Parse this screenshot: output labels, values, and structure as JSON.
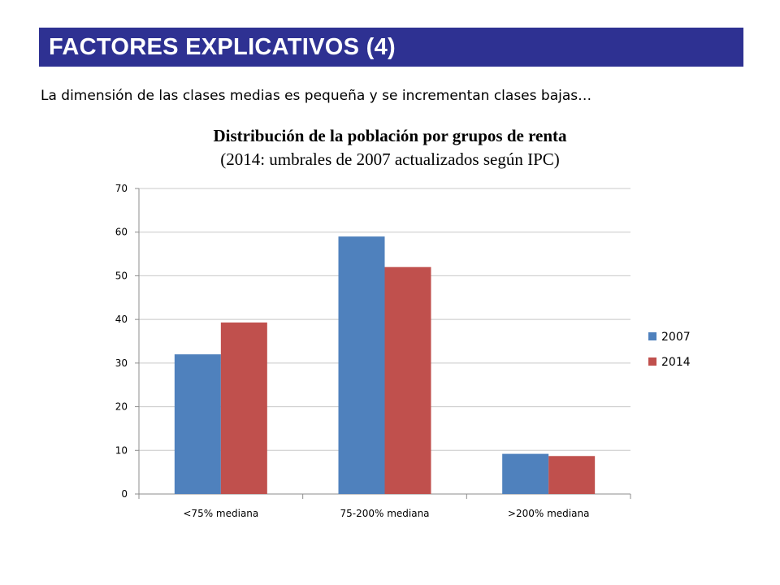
{
  "header": {
    "title": "FACTORES EXPLICATIVOS (4)",
    "bg_color": "#2e3192"
  },
  "subtitle": "La dimensión de las clases medias es pequeña y se incrementan clases bajas…",
  "chart_data": {
    "type": "bar",
    "title": "Distribución de la población por grupos de renta",
    "subtitle": "(2014: umbrales de 2007 actualizados según IPC)",
    "categories": [
      "<75% mediana",
      "75-200% mediana",
      ">200% mediana"
    ],
    "series": [
      {
        "name": "2007",
        "values": [
          32,
          59,
          9.2
        ],
        "color": "#4f81bd"
      },
      {
        "name": "2014",
        "values": [
          39.3,
          52,
          8.7
        ],
        "color": "#c0504d"
      }
    ],
    "ylim": [
      0,
      70
    ],
    "yticks": [
      0,
      10,
      20,
      30,
      40,
      50,
      60,
      70
    ],
    "grid": true,
    "legend_position": "right"
  }
}
